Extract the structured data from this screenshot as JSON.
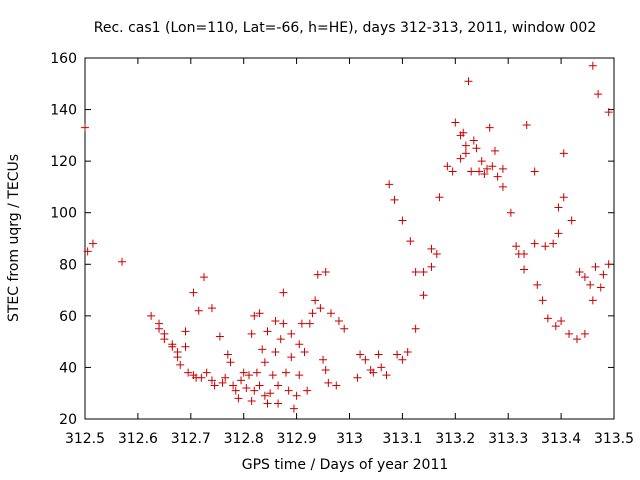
{
  "chart_data": {
    "type": "scatter",
    "title": "Rec. cas1 (Lon=110, Lat=-66, h=HE), days 312-313, 2011, window 002",
    "xlabel": "GPS time / Days of year 2011",
    "ylabel": "STEC from uqrg / TECUs",
    "xlim": [
      312.5,
      313.5
    ],
    "ylim": [
      20,
      160
    ],
    "grid": false,
    "legend": "none",
    "marker": "+",
    "color": "#cc0000",
    "xticks": [
      {
        "value": 312.5,
        "label": "312.5"
      },
      {
        "value": 312.6,
        "label": "312.6"
      },
      {
        "value": 312.7,
        "label": "312.7"
      },
      {
        "value": 312.8,
        "label": "312.8"
      },
      {
        "value": 312.9,
        "label": "312.9"
      },
      {
        "value": 313.0,
        "label": "313"
      },
      {
        "value": 313.1,
        "label": "313.1"
      },
      {
        "value": 313.2,
        "label": "313.2"
      },
      {
        "value": 313.3,
        "label": "313.3"
      },
      {
        "value": 313.4,
        "label": "313.4"
      },
      {
        "value": 313.5,
        "label": "313.5"
      }
    ],
    "yticks": [
      {
        "value": 20,
        "label": "20"
      },
      {
        "value": 40,
        "label": "40"
      },
      {
        "value": 60,
        "label": "60"
      },
      {
        "value": 80,
        "label": "80"
      },
      {
        "value": 100,
        "label": "100"
      },
      {
        "value": 120,
        "label": "120"
      },
      {
        "value": 140,
        "label": "140"
      },
      {
        "value": 160,
        "label": "160"
      }
    ],
    "series": [
      {
        "name": "STEC",
        "points": [
          [
            312.5,
            133
          ],
          [
            312.505,
            85
          ],
          [
            312.515,
            88
          ],
          [
            312.57,
            81
          ],
          [
            312.625,
            60
          ],
          [
            312.64,
            55
          ],
          [
            312.64,
            57
          ],
          [
            312.65,
            53
          ],
          [
            312.65,
            51
          ],
          [
            312.665,
            49
          ],
          [
            312.665,
            48
          ],
          [
            312.675,
            46
          ],
          [
            312.675,
            44
          ],
          [
            312.68,
            41
          ],
          [
            312.69,
            54
          ],
          [
            312.69,
            48
          ],
          [
            312.695,
            38
          ],
          [
            312.705,
            69
          ],
          [
            312.705,
            37
          ],
          [
            312.71,
            36
          ],
          [
            312.715,
            62
          ],
          [
            312.72,
            36
          ],
          [
            312.725,
            75
          ],
          [
            312.73,
            38
          ],
          [
            312.74,
            63
          ],
          [
            312.74,
            35
          ],
          [
            312.745,
            33
          ],
          [
            312.755,
            52
          ],
          [
            312.76,
            34
          ],
          [
            312.765,
            36
          ],
          [
            312.77,
            45
          ],
          [
            312.775,
            42
          ],
          [
            312.78,
            33
          ],
          [
            312.785,
            31
          ],
          [
            312.79,
            28
          ],
          [
            312.795,
            35
          ],
          [
            312.8,
            38
          ],
          [
            312.805,
            32
          ],
          [
            312.81,
            37
          ],
          [
            312.815,
            27
          ],
          [
            312.815,
            53
          ],
          [
            312.82,
            60
          ],
          [
            312.82,
            31
          ],
          [
            312.825,
            38
          ],
          [
            312.83,
            33
          ],
          [
            312.83,
            61
          ],
          [
            312.835,
            47
          ],
          [
            312.84,
            29
          ],
          [
            312.84,
            42
          ],
          [
            312.845,
            54
          ],
          [
            312.845,
            26
          ],
          [
            312.85,
            30
          ],
          [
            312.855,
            37
          ],
          [
            312.86,
            46
          ],
          [
            312.86,
            58
          ],
          [
            312.865,
            26
          ],
          [
            312.865,
            33
          ],
          [
            312.87,
            51
          ],
          [
            312.875,
            57
          ],
          [
            312.875,
            69
          ],
          [
            312.88,
            38
          ],
          [
            312.885,
            31
          ],
          [
            312.89,
            44
          ],
          [
            312.89,
            53
          ],
          [
            312.895,
            24
          ],
          [
            312.9,
            29
          ],
          [
            312.905,
            37
          ],
          [
            312.905,
            49
          ],
          [
            312.91,
            57
          ],
          [
            312.915,
            46
          ],
          [
            312.92,
            31
          ],
          [
            312.925,
            57
          ],
          [
            312.93,
            61
          ],
          [
            312.935,
            66
          ],
          [
            312.94,
            76
          ],
          [
            312.945,
            63
          ],
          [
            312.95,
            43
          ],
          [
            312.955,
            77
          ],
          [
            312.955,
            39
          ],
          [
            312.96,
            34
          ],
          [
            312.965,
            61
          ],
          [
            312.975,
            33
          ],
          [
            312.98,
            58
          ],
          [
            312.99,
            55
          ],
          [
            313.015,
            36
          ],
          [
            313.02,
            45
          ],
          [
            313.03,
            43
          ],
          [
            313.04,
            39
          ],
          [
            313.045,
            38
          ],
          [
            313.055,
            45
          ],
          [
            313.06,
            40
          ],
          [
            313.07,
            37
          ],
          [
            313.075,
            111
          ],
          [
            313.085,
            105
          ],
          [
            313.09,
            45
          ],
          [
            313.1,
            43
          ],
          [
            313.1,
            97
          ],
          [
            313.11,
            46
          ],
          [
            313.115,
            89
          ],
          [
            313.125,
            55
          ],
          [
            313.125,
            77
          ],
          [
            313.14,
            68
          ],
          [
            313.14,
            77
          ],
          [
            313.155,
            79
          ],
          [
            313.155,
            86
          ],
          [
            313.165,
            84
          ],
          [
            313.17,
            106
          ],
          [
            313.185,
            118
          ],
          [
            313.195,
            116
          ],
          [
            313.2,
            135
          ],
          [
            313.21,
            121
          ],
          [
            313.21,
            130
          ],
          [
            313.215,
            131
          ],
          [
            313.22,
            123
          ],
          [
            313.22,
            126
          ],
          [
            313.225,
            151
          ],
          [
            313.23,
            116
          ],
          [
            313.235,
            128
          ],
          [
            313.24,
            125
          ],
          [
            313.245,
            116
          ],
          [
            313.25,
            120
          ],
          [
            313.255,
            115
          ],
          [
            313.26,
            117
          ],
          [
            313.265,
            133
          ],
          [
            313.27,
            118
          ],
          [
            313.275,
            124
          ],
          [
            313.28,
            114
          ],
          [
            313.29,
            117
          ],
          [
            313.29,
            110
          ],
          [
            313.305,
            100
          ],
          [
            313.315,
            87
          ],
          [
            313.32,
            84
          ],
          [
            313.33,
            84
          ],
          [
            313.33,
            78
          ],
          [
            313.335,
            134
          ],
          [
            313.35,
            116
          ],
          [
            313.35,
            88
          ],
          [
            313.355,
            72
          ],
          [
            313.365,
            66
          ],
          [
            313.37,
            87
          ],
          [
            313.375,
            59
          ],
          [
            313.385,
            88
          ],
          [
            313.39,
            56
          ],
          [
            313.395,
            92
          ],
          [
            313.395,
            102
          ],
          [
            313.4,
            58
          ],
          [
            313.405,
            106
          ],
          [
            313.405,
            123
          ],
          [
            313.415,
            53
          ],
          [
            313.42,
            97
          ],
          [
            313.43,
            51
          ],
          [
            313.435,
            77
          ],
          [
            313.445,
            53
          ],
          [
            313.445,
            75
          ],
          [
            313.455,
            72
          ],
          [
            313.46,
            66
          ],
          [
            313.46,
            157
          ],
          [
            313.465,
            79
          ],
          [
            313.47,
            146
          ],
          [
            313.475,
            71
          ],
          [
            313.48,
            76
          ],
          [
            313.49,
            80
          ],
          [
            313.49,
            139
          ]
        ]
      }
    ]
  }
}
